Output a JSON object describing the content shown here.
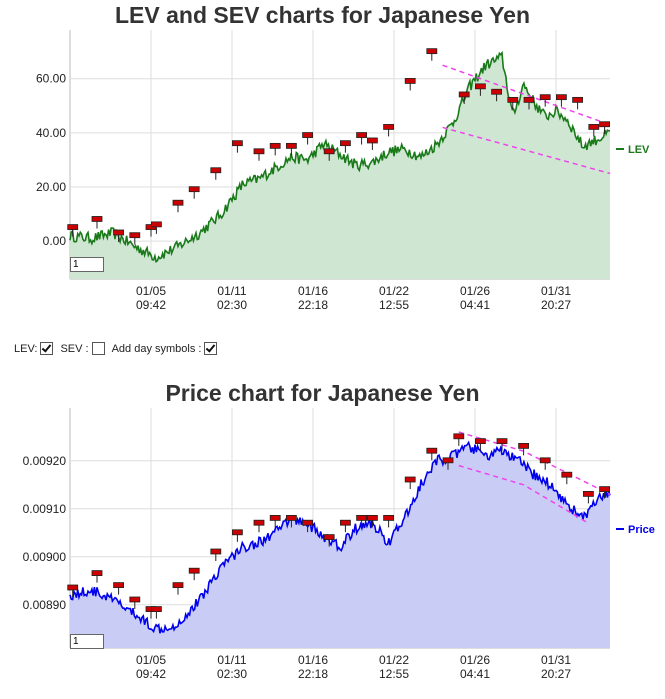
{
  "chart_data": [
    {
      "type": "area",
      "title": "LEV and SEV charts for Japanese Yen",
      "x_labels": [
        [
          "01/05",
          "09:42"
        ],
        [
          "01/11",
          "02:30"
        ],
        [
          "01/16",
          "22:18"
        ],
        [
          "01/22",
          "12:55"
        ],
        [
          "01/26",
          "04:41"
        ],
        [
          "01/31",
          "20:27"
        ]
      ],
      "yticks": [
        "60.00",
        "40.00",
        "20.00",
        "0.00"
      ],
      "ytick_values": [
        60,
        40,
        20,
        0
      ],
      "ylim": [
        -14,
        78
      ],
      "series": [
        {
          "name": "LEV",
          "color": "#1a7a1a",
          "fill": "#cfe6d2",
          "x": [
            0,
            4,
            8,
            12,
            16,
            20,
            24,
            28,
            32,
            35,
            38,
            41,
            44,
            47,
            50,
            53,
            56,
            59,
            62,
            65,
            68,
            71,
            74,
            77,
            80,
            82,
            84,
            86,
            88,
            90,
            92,
            95,
            100
          ],
          "values": [
            2,
            1,
            3,
            -2,
            -6,
            -2,
            3,
            10,
            21,
            23,
            27,
            31,
            30,
            36,
            32,
            28,
            29,
            33,
            34,
            31,
            36,
            44,
            57,
            65,
            68,
            46,
            58,
            51,
            46,
            48,
            45,
            35,
            40
          ]
        }
      ],
      "symbols": [
        {
          "x": 0.5,
          "y": 5
        },
        {
          "x": 5,
          "y": 8
        },
        {
          "x": 9,
          "y": 3
        },
        {
          "x": 12,
          "y": 2
        },
        {
          "x": 15,
          "y": 5
        },
        {
          "x": 16,
          "y": 6
        },
        {
          "x": 20,
          "y": 14
        },
        {
          "x": 23,
          "y": 19
        },
        {
          "x": 27,
          "y": 26
        },
        {
          "x": 31,
          "y": 36
        },
        {
          "x": 35,
          "y": 33
        },
        {
          "x": 38,
          "y": 35
        },
        {
          "x": 41,
          "y": 35
        },
        {
          "x": 44,
          "y": 39
        },
        {
          "x": 48,
          "y": 33
        },
        {
          "x": 51,
          "y": 36
        },
        {
          "x": 54,
          "y": 39
        },
        {
          "x": 56,
          "y": 37
        },
        {
          "x": 59,
          "y": 42
        },
        {
          "x": 63,
          "y": 59
        },
        {
          "x": 67,
          "y": 70
        },
        {
          "x": 73,
          "y": 54
        },
        {
          "x": 76,
          "y": 57
        },
        {
          "x": 79,
          "y": 55
        },
        {
          "x": 82,
          "y": 52
        },
        {
          "x": 85,
          "y": 52
        },
        {
          "x": 88,
          "y": 53
        },
        {
          "x": 91,
          "y": 53
        },
        {
          "x": 94,
          "y": 52
        },
        {
          "x": 97,
          "y": 42
        },
        {
          "x": 99,
          "y": 43
        }
      ],
      "trendlines": [
        {
          "from": [
            69,
            65
          ],
          "to": [
            100,
            43
          ]
        },
        {
          "from": [
            69,
            42
          ],
          "to": [
            100,
            25
          ]
        }
      ],
      "legend": "LEV",
      "pager_value": "1"
    },
    {
      "type": "area",
      "title": "Price chart for Japanese Yen",
      "x_labels": [
        [
          "01/05",
          "09:42"
        ],
        [
          "01/11",
          "02:30"
        ],
        [
          "01/16",
          "22:18"
        ],
        [
          "01/22",
          "12:55"
        ],
        [
          "01/26",
          "04:41"
        ],
        [
          "01/31",
          "20:27"
        ]
      ],
      "yticks": [
        "0.00920",
        "0.00910",
        "0.00900",
        "0.00890"
      ],
      "ytick_values": [
        0.0092,
        0.0091,
        0.009,
        0.0089
      ],
      "ylim": [
        0.00881,
        0.00931
      ],
      "series": [
        {
          "name": "Price",
          "color": "#0000ee",
          "fill": "#c9cdf6",
          "x": [
            0,
            4,
            8,
            12,
            16,
            20,
            24,
            28,
            32,
            35,
            38,
            41,
            44,
            47,
            50,
            53,
            56,
            59,
            62,
            65,
            68,
            71,
            74,
            77,
            80,
            83,
            86,
            89,
            92,
            95,
            98,
            100
          ],
          "values": [
            0.00892,
            0.00893,
            0.00891,
            0.00888,
            0.00885,
            0.00886,
            0.00891,
            0.00898,
            0.00902,
            0.00903,
            0.00905,
            0.00908,
            0.00907,
            0.00904,
            0.00902,
            0.00906,
            0.00907,
            0.00903,
            0.00908,
            0.00915,
            0.0092,
            0.00921,
            0.00923,
            0.00921,
            0.00922,
            0.0092,
            0.00917,
            0.00915,
            0.00911,
            0.00908,
            0.00912,
            0.00913
          ]
        }
      ],
      "symbols": [
        {
          "x": 0.5,
          "y": 0.008935
        },
        {
          "x": 5,
          "y": 0.008965
        },
        {
          "x": 9,
          "y": 0.00894
        },
        {
          "x": 12,
          "y": 0.00891
        },
        {
          "x": 15,
          "y": 0.00889
        },
        {
          "x": 16,
          "y": 0.00889
        },
        {
          "x": 20,
          "y": 0.00894
        },
        {
          "x": 23,
          "y": 0.00897
        },
        {
          "x": 27,
          "y": 0.00901
        },
        {
          "x": 31,
          "y": 0.00905
        },
        {
          "x": 35,
          "y": 0.00907
        },
        {
          "x": 38,
          "y": 0.00908
        },
        {
          "x": 41,
          "y": 0.00908
        },
        {
          "x": 44,
          "y": 0.00907
        },
        {
          "x": 48,
          "y": 0.00904
        },
        {
          "x": 51,
          "y": 0.00907
        },
        {
          "x": 54,
          "y": 0.00908
        },
        {
          "x": 56,
          "y": 0.00908
        },
        {
          "x": 59,
          "y": 0.00908
        },
        {
          "x": 63,
          "y": 0.00916
        },
        {
          "x": 67,
          "y": 0.00922
        },
        {
          "x": 70,
          "y": 0.0092
        },
        {
          "x": 72,
          "y": 0.00925
        },
        {
          "x": 76,
          "y": 0.00924
        },
        {
          "x": 80,
          "y": 0.00924
        },
        {
          "x": 84,
          "y": 0.00923
        },
        {
          "x": 88,
          "y": 0.0092
        },
        {
          "x": 92,
          "y": 0.00917
        },
        {
          "x": 96,
          "y": 0.00913
        },
        {
          "x": 99,
          "y": 0.00914
        }
      ],
      "trendlines": [
        {
          "from": [
            72,
            0.00926
          ],
          "to": [
            84,
            0.00922
          ],
          "to2": [
            100,
            0.00913
          ]
        },
        {
          "from": [
            72,
            0.00919
          ],
          "to": [
            84,
            0.00915
          ],
          "to2": [
            96,
            0.00907
          ]
        }
      ],
      "legend": "Price",
      "pager_value": "1"
    }
  ],
  "controls": {
    "lev_label": "LEV:",
    "sev_label": "SEV :",
    "day_symbols_label": "Add day symbols :",
    "lev_checked": true,
    "sev_checked": false,
    "day_symbols_checked": true
  },
  "colors": {
    "symbol": "#cc0000",
    "trendline": "#ee44ee",
    "grid": "#dddddd"
  }
}
